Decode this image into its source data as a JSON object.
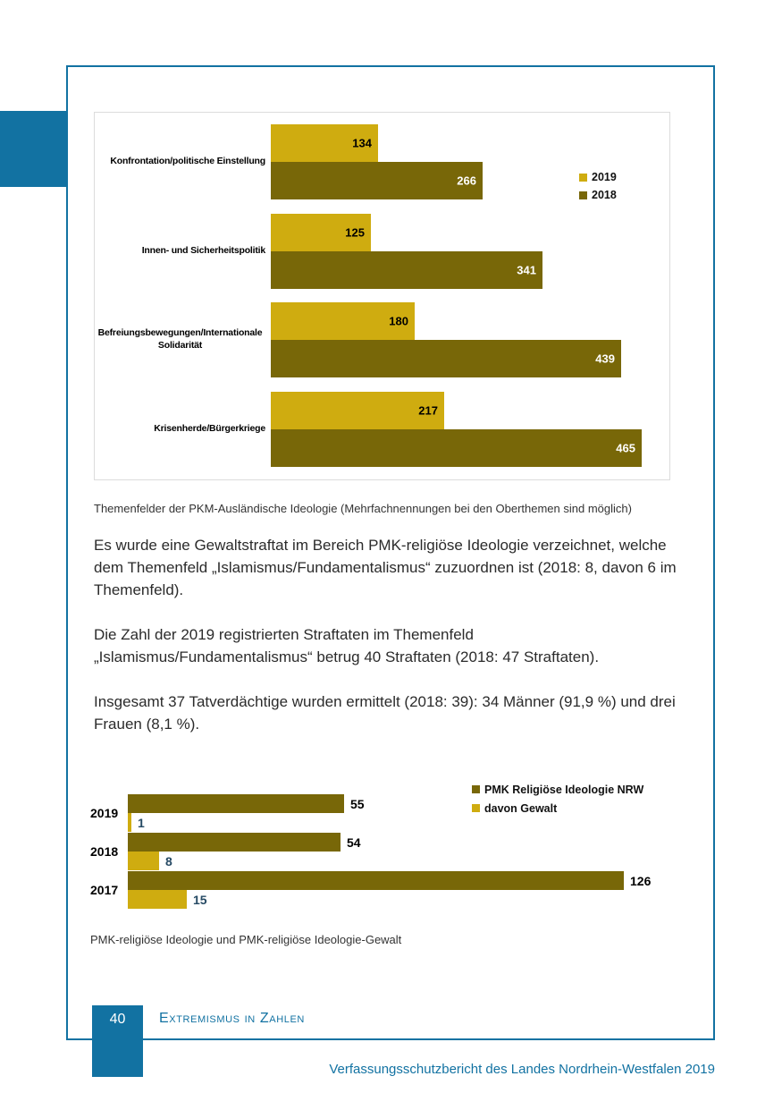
{
  "page": {
    "number": "40",
    "section_title": "Extremismus in Zahlen",
    "footer": "Verfassungsschutzbericht des Landes Nordrhein-Westfalen 2019",
    "accent_blue": "#1272A2"
  },
  "captions": {
    "chart1": "Themenfelder der PKM-Ausländische Ideologie (Mehrfachnennungen bei den Oberthemen sind möglich)",
    "chart2": "PMK-religiöse Ideologie und PMK-religiöse Ideologie-Gewalt"
  },
  "paragraphs": [
    "Es wurde eine Gewaltstraftat im Bereich PMK-religiöse Ideologie verzeichnet, welche dem Themenfeld „Islamismus/Fundamentalismus“ zuzuordnen ist (2018: 8, davon 6 im Themenfeld).",
    "Die Zahl der 2019 registrierten Straftaten im Themenfeld „Islamismus/Fundamentalismus“ betrug 40 Straftaten (2018: 47 Straftaten).",
    "Insgesamt 37 Tatverdächtige wurden ermittelt (2018: 39): 34 Männer (91,9 %) und drei Frauen (8,1 %)."
  ],
  "chart_data": [
    {
      "type": "bar",
      "orientation": "horizontal",
      "title": "",
      "categories": [
        "Konfrontation/politische Einstellung",
        "Innen- und Sicherheitspolitik",
        "Befreiungsbewegungen/Internationale Solidarität",
        "Krisenherde/Bürgerkriege"
      ],
      "series": [
        {
          "name": "2019",
          "color": "#CFAC10",
          "values": [
            134,
            125,
            180,
            217
          ],
          "label_color": "#000000"
        },
        {
          "name": "2018",
          "color": "#786708",
          "values": [
            266,
            341,
            439,
            465
          ],
          "label_color": "#ffffff"
        }
      ],
      "xlim": [
        0,
        465
      ],
      "grid": false,
      "legend_position": "right"
    },
    {
      "type": "bar",
      "orientation": "horizontal",
      "title": "",
      "categories": [
        "2019",
        "2018",
        "2017"
      ],
      "series": [
        {
          "name": "PMK Religiöse Ideologie NRW",
          "color": "#786708",
          "values": [
            55,
            54,
            126
          ],
          "label_color": "#000000"
        },
        {
          "name": "davon Gewalt",
          "color": "#CFAC10",
          "values": [
            1,
            8,
            15
          ],
          "label_color": "#264A64"
        }
      ],
      "xlim": [
        0,
        126
      ],
      "grid": false,
      "legend_position": "top-right"
    }
  ]
}
